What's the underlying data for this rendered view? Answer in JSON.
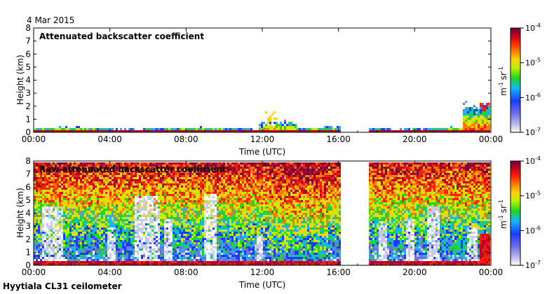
{
  "date": "4 Mar 2015",
  "footer": "Hyytiala CL31 ceilometer",
  "colors": {
    "scale": [
      "#ffffff",
      "#c8c8f0",
      "#6f6fe6",
      "#1a3cff",
      "#14b4ff",
      "#1ed71e",
      "#c0f000",
      "#ffd200",
      "#ff7a00",
      "#ff1e00",
      "#b4002a",
      "#6e003c"
    ],
    "gap": "#ffffff"
  },
  "chart_data": [
    {
      "type": "heatmap",
      "title": "Attenuated backscatter coefficient",
      "xlabel": "Time (UTC)",
      "ylabel": "Height (km)",
      "x_ticks": [
        "00:00",
        "04:00",
        "08:00",
        "12:00",
        "16:00",
        "20:00",
        "00:00"
      ],
      "y_ticks": [
        "0",
        "1",
        "2",
        "3",
        "4",
        "5",
        "6",
        "7",
        "8"
      ],
      "xlim_hours": [
        0,
        24
      ],
      "ylim_km": [
        0,
        8
      ],
      "data_gap_hours": [
        16.2,
        17.6
      ],
      "colorbar": {
        "scale": "log",
        "range": [
          1e-07,
          0.0001
        ],
        "ticks": [
          {
            "base": "10",
            "exp": "-4"
          },
          {
            "base": "10",
            "exp": "-5"
          },
          {
            "base": "10",
            "exp": "-6"
          },
          {
            "base": "10",
            "exp": "-7"
          }
        ],
        "unit": {
          "m": "m",
          "m_exp": "-1",
          "sr": "sr",
          "sr_exp": "-1"
        }
      }
    },
    {
      "type": "heatmap",
      "title": "Raw attenuated backscatter coefficient",
      "xlabel": "Time (UTC)",
      "ylabel": "Height (km)",
      "x_ticks": [
        "00:00",
        "04:00",
        "08:00",
        "12:00",
        "16:00",
        "20:00",
        "00:00"
      ],
      "y_ticks": [
        "0",
        "1",
        "2",
        "3",
        "4",
        "5",
        "6",
        "7",
        "8"
      ],
      "xlim_hours": [
        0,
        24
      ],
      "ylim_km": [
        0,
        8
      ],
      "data_gap_hours": [
        16.2,
        17.6
      ],
      "colorbar": {
        "scale": "log",
        "range": [
          1e-07,
          0.0001
        ],
        "ticks": [
          {
            "base": "10",
            "exp": "-4"
          },
          {
            "base": "10",
            "exp": "-5"
          },
          {
            "base": "10",
            "exp": "-6"
          },
          {
            "base": "10",
            "exp": "-7"
          }
        ],
        "unit": {
          "m": "m",
          "m_exp": "-1",
          "sr": "sr",
          "sr_exp": "-1"
        }
      }
    }
  ]
}
